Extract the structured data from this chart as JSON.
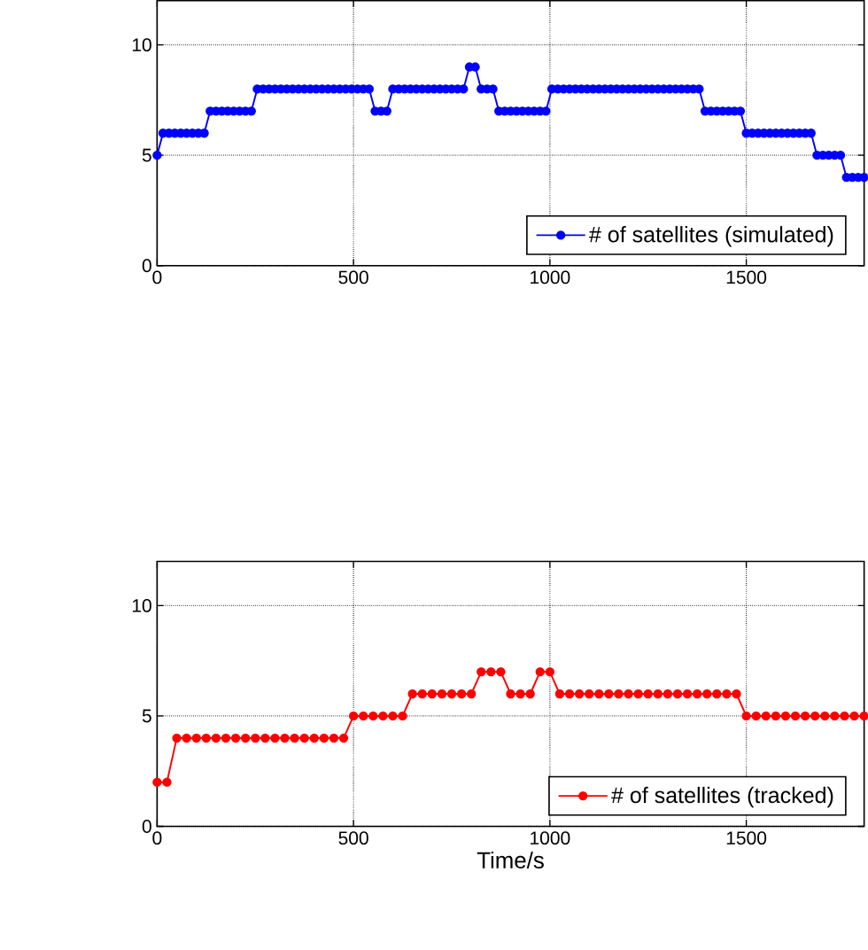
{
  "chart_data": [
    {
      "type": "line",
      "xlim": [
        0,
        1800
      ],
      "ylim": [
        0,
        12
      ],
      "xticks": [
        0,
        500,
        1000,
        1500
      ],
      "yticks": [
        0,
        5,
        10
      ],
      "grid": true,
      "legend": "bottom right",
      "marker": "circle",
      "line_style": "solid",
      "x": [
        0,
        15,
        30,
        45,
        60,
        75,
        90,
        105,
        120,
        135,
        150,
        165,
        180,
        195,
        210,
        225,
        240,
        255,
        270,
        285,
        300,
        315,
        330,
        345,
        360,
        375,
        390,
        405,
        420,
        435,
        450,
        465,
        480,
        495,
        510,
        525,
        540,
        555,
        570,
        585,
        600,
        615,
        630,
        645,
        660,
        675,
        690,
        705,
        720,
        735,
        750,
        765,
        780,
        795,
        810,
        825,
        840,
        855,
        870,
        885,
        900,
        915,
        930,
        945,
        960,
        975,
        990,
        1005,
        1020,
        1035,
        1050,
        1065,
        1080,
        1095,
        1110,
        1125,
        1140,
        1155,
        1170,
        1185,
        1200,
        1215,
        1230,
        1245,
        1260,
        1275,
        1290,
        1305,
        1320,
        1335,
        1350,
        1365,
        1380,
        1395,
        1410,
        1425,
        1440,
        1455,
        1470,
        1485,
        1500,
        1515,
        1530,
        1545,
        1560,
        1575,
        1590,
        1605,
        1620,
        1635,
        1650,
        1665,
        1680,
        1695,
        1710,
        1725,
        1740,
        1755,
        1770,
        1785,
        1800
      ],
      "series": [
        {
          "name": "# of satellites (simulated)",
          "color": "#0000ff",
          "values": [
            5,
            6,
            6,
            6,
            6,
            6,
            6,
            6,
            6,
            7,
            7,
            7,
            7,
            7,
            7,
            7,
            7,
            8,
            8,
            8,
            8,
            8,
            8,
            8,
            8,
            8,
            8,
            8,
            8,
            8,
            8,
            8,
            8,
            8,
            8,
            8,
            8,
            7,
            7,
            7,
            8,
            8,
            8,
            8,
            8,
            8,
            8,
            8,
            8,
            8,
            8,
            8,
            8,
            9,
            9,
            8,
            8,
            8,
            7,
            7,
            7,
            7,
            7,
            7,
            7,
            7,
            7,
            8,
            8,
            8,
            8,
            8,
            8,
            8,
            8,
            8,
            8,
            8,
            8,
            8,
            8,
            8,
            8,
            8,
            8,
            8,
            8,
            8,
            8,
            8,
            8,
            8,
            8,
            7,
            7,
            7,
            7,
            7,
            7,
            7,
            6,
            6,
            6,
            6,
            6,
            6,
            6,
            6,
            6,
            6,
            6,
            6,
            5,
            5,
            5,
            5,
            5,
            4,
            4,
            4,
            4
          ]
        }
      ]
    },
    {
      "type": "line",
      "xlim": [
        0,
        1800
      ],
      "ylim": [
        0,
        12
      ],
      "xticks": [
        0,
        500,
        1000,
        1500
      ],
      "yticks": [
        0,
        5,
        10
      ],
      "grid": true,
      "legend": "bottom right",
      "marker": "circle",
      "line_style": "solid",
      "xlabel": "Time/s",
      "x": [
        0,
        25,
        50,
        75,
        100,
        125,
        150,
        175,
        200,
        225,
        250,
        275,
        300,
        325,
        350,
        375,
        400,
        425,
        450,
        475,
        500,
        525,
        550,
        575,
        600,
        625,
        650,
        675,
        700,
        725,
        750,
        775,
        800,
        825,
        850,
        875,
        900,
        925,
        950,
        975,
        1000,
        1025,
        1050,
        1075,
        1100,
        1125,
        1150,
        1175,
        1200,
        1225,
        1250,
        1275,
        1300,
        1325,
        1350,
        1375,
        1400,
        1425,
        1450,
        1475,
        1500,
        1525,
        1550,
        1575,
        1600,
        1625,
        1650,
        1675,
        1700,
        1725,
        1750,
        1775,
        1800
      ],
      "series": [
        {
          "name": "# of satellites (tracked)",
          "color": "#ff0000",
          "values": [
            2,
            2,
            4,
            4,
            4,
            4,
            4,
            4,
            4,
            4,
            4,
            4,
            4,
            4,
            4,
            4,
            4,
            4,
            4,
            4,
            5,
            5,
            5,
            5,
            5,
            5,
            6,
            6,
            6,
            6,
            6,
            6,
            6,
            7,
            7,
            7,
            6,
            6,
            6,
            7,
            7,
            6,
            6,
            6,
            6,
            6,
            6,
            6,
            6,
            6,
            6,
            6,
            6,
            6,
            6,
            6,
            6,
            6,
            6,
            6,
            5,
            5,
            5,
            5,
            5,
            5,
            5,
            5,
            5,
            5,
            5,
            5,
            5
          ]
        }
      ]
    }
  ]
}
